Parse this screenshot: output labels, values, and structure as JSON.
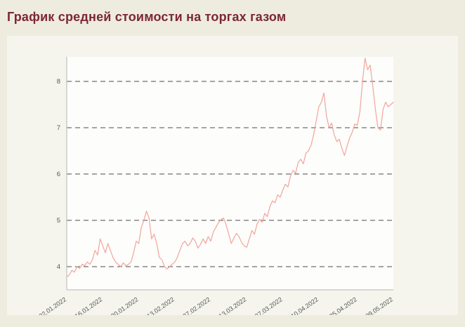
{
  "page": {
    "title": "График средней стоимости на торгах газом"
  },
  "colors": {
    "page_bg": "#edecdf",
    "panel_bg": "#f5f5ee",
    "plot_bg": "#fdfdfb",
    "title_color": "#7d2733",
    "axis_text": "#555555",
    "grid_color": "#4a4a4a",
    "axis_line": "#b5b5b5",
    "line_color": "#f3a49c"
  },
  "chart_data": {
    "type": "line",
    "title": "График средней стоимости на торгах газом",
    "xlabel": "",
    "ylabel": "",
    "grid": "dashed-horizontal",
    "legend": "none",
    "y_ticks": [
      4,
      5,
      6,
      7,
      8
    ],
    "y_range": [
      3.5,
      8.53
    ],
    "x_range_days": [
      0,
      127
    ],
    "x_tick_days": [
      0,
      14,
      28,
      42,
      56,
      70,
      84,
      98,
      113,
      127
    ],
    "x_tick_labels": [
      "02.01.2022",
      "16.01.2022",
      "30.01.2022",
      "13.02.2022",
      "27.02.2022",
      "13.03.2022",
      "27.03.2022",
      "10.04.2022",
      "25.04.2022",
      "09.05.2022"
    ],
    "values": [
      3.78,
      3.82,
      3.92,
      3.88,
      4.0,
      3.96,
      4.05,
      4.02,
      4.1,
      4.05,
      4.15,
      4.35,
      4.25,
      4.6,
      4.45,
      4.3,
      4.5,
      4.35,
      4.2,
      4.1,
      4.05,
      4.0,
      4.08,
      4.02,
      4.05,
      4.1,
      4.3,
      4.55,
      4.5,
      4.85,
      5.0,
      5.2,
      5.05,
      4.6,
      4.7,
      4.5,
      4.2,
      4.15,
      4.0,
      3.95,
      4.0,
      4.05,
      4.1,
      4.2,
      4.35,
      4.5,
      4.55,
      4.45,
      4.5,
      4.62,
      4.55,
      4.4,
      4.48,
      4.6,
      4.5,
      4.65,
      4.55,
      4.75,
      4.85,
      4.95,
      5.02,
      5.05,
      4.9,
      4.7,
      4.5,
      4.62,
      4.72,
      4.65,
      4.52,
      4.45,
      4.42,
      4.6,
      4.78,
      4.7,
      4.92,
      5.02,
      4.96,
      5.15,
      5.08,
      5.3,
      5.42,
      5.38,
      5.55,
      5.5,
      5.65,
      5.78,
      5.72,
      5.95,
      6.08,
      6.02,
      6.25,
      6.32,
      6.22,
      6.45,
      6.5,
      6.62,
      6.85,
      7.15,
      7.45,
      7.55,
      7.75,
      7.25,
      7.0,
      7.1,
      6.85,
      6.7,
      6.75,
      6.55,
      6.4,
      6.6,
      6.78,
      6.9,
      7.08,
      7.05,
      7.35,
      8.0,
      8.5,
      8.25,
      8.35,
      7.9,
      7.4,
      7.0,
      6.95,
      7.4,
      7.55,
      7.45,
      7.5,
      7.55
    ]
  }
}
